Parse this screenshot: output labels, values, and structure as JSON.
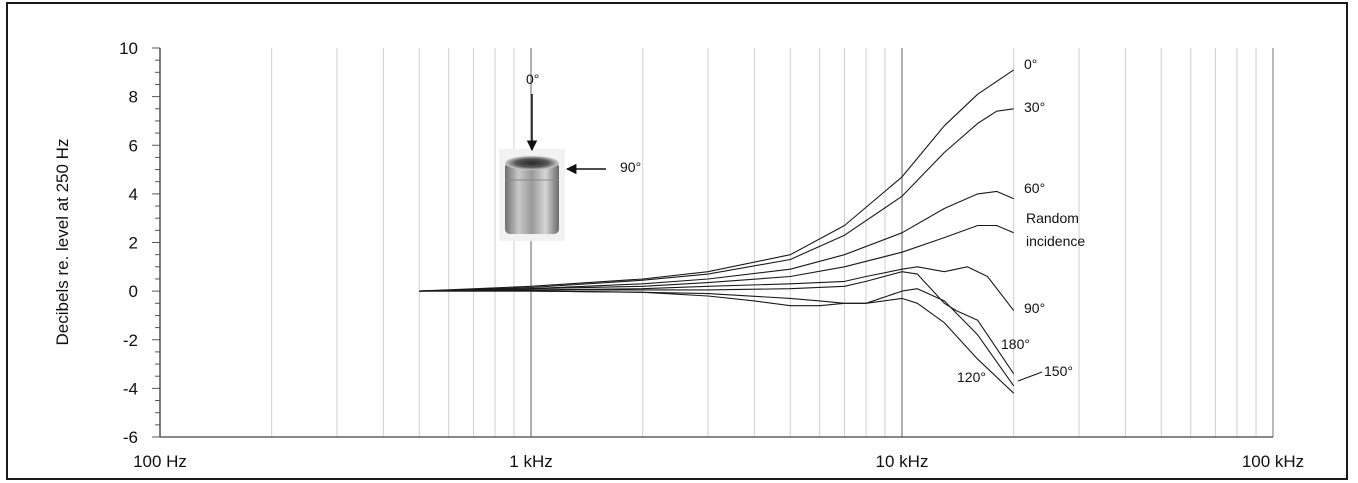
{
  "chart_data": {
    "type": "line",
    "title": "",
    "xlabel": "",
    "ylabel": "Decibels re. level at 250 Hz",
    "xscale": "log",
    "xlim": [
      100,
      100000
    ],
    "ylim": [
      -6,
      10
    ],
    "grid": true,
    "x_tick_labels": [
      "100 Hz",
      "1 kHz",
      "10 kHz",
      "100 kHz"
    ],
    "y_ticks": [
      -6,
      -4,
      -2,
      0,
      2,
      4,
      6,
      8,
      10
    ],
    "series": [
      {
        "name": "0°",
        "x": [
          500,
          1000,
          2000,
          3000,
          5000,
          7000,
          10000,
          13000,
          16000,
          20000
        ],
        "y": [
          0,
          0.2,
          0.5,
          0.8,
          1.5,
          2.7,
          4.7,
          6.8,
          8.1,
          9.1
        ]
      },
      {
        "name": "30°",
        "x": [
          500,
          1000,
          2000,
          3000,
          5000,
          7000,
          10000,
          13000,
          16000,
          18000,
          20000
        ],
        "y": [
          0,
          0.15,
          0.45,
          0.7,
          1.3,
          2.3,
          3.9,
          5.7,
          6.9,
          7.4,
          7.5
        ]
      },
      {
        "name": "60°",
        "x": [
          500,
          1000,
          2000,
          3000,
          5000,
          7000,
          10000,
          13000,
          16000,
          18000,
          20000
        ],
        "y": [
          0,
          0.1,
          0.3,
          0.5,
          0.9,
          1.5,
          2.4,
          3.4,
          4.0,
          4.1,
          3.8
        ]
      },
      {
        "name": "Random incidence",
        "x": [
          500,
          1000,
          2000,
          3000,
          5000,
          7000,
          10000,
          13000,
          16000,
          18000,
          20000
        ],
        "y": [
          0,
          0.1,
          0.2,
          0.35,
          0.6,
          1.0,
          1.6,
          2.2,
          2.7,
          2.7,
          2.4
        ]
      },
      {
        "name": "90°",
        "x": [
          500,
          1000,
          2000,
          3000,
          5000,
          7000,
          8000,
          10000,
          11000,
          13000,
          15000,
          17000,
          20000
        ],
        "y": [
          0,
          0.05,
          0.1,
          0.2,
          0.3,
          0.4,
          0.6,
          0.9,
          1.0,
          0.8,
          1.0,
          0.6,
          -0.8
        ]
      },
      {
        "name": "180°",
        "x": [
          500,
          1000,
          2000,
          3000,
          5000,
          7000,
          8000,
          10000,
          11000,
          13000,
          14000,
          16000,
          20000
        ],
        "y": [
          0,
          0.05,
          0.05,
          0.05,
          0.1,
          0.2,
          0.4,
          0.8,
          0.7,
          -0.5,
          -0.8,
          -1.2,
          -3.4
        ]
      },
      {
        "name": "150°",
        "x": [
          500,
          1000,
          2000,
          3000,
          5000,
          6000,
          7000,
          8000,
          10000,
          11000,
          13000,
          16000,
          20000
        ],
        "y": [
          0,
          0,
          -0.05,
          -0.1,
          -0.3,
          -0.4,
          -0.5,
          -0.5,
          0.0,
          0.1,
          -0.4,
          -1.8,
          -3.9
        ]
      },
      {
        "name": "120°",
        "x": [
          500,
          1000,
          2000,
          3000,
          4000,
          5000,
          6000,
          7000,
          8000,
          10000,
          11000,
          13000,
          16000,
          20000
        ],
        "y": [
          0,
          0,
          -0.05,
          -0.2,
          -0.4,
          -0.6,
          -0.6,
          -0.5,
          -0.5,
          -0.3,
          -0.5,
          -1.3,
          -2.8,
          -4.2
        ]
      }
    ],
    "curve_labels": [
      {
        "text": "0°",
        "series": "0°"
      },
      {
        "text": "30°",
        "series": "30°"
      },
      {
        "text": "60°",
        "series": "60°"
      },
      {
        "text": "Random",
        "series": "Random incidence"
      },
      {
        "text": "incidence",
        "series": "Random incidence"
      },
      {
        "text": "90°",
        "series": "90°"
      },
      {
        "text": "180°",
        "series": "180°"
      },
      {
        "text": "150°",
        "series": "150°"
      },
      {
        "text": "120°",
        "series": "120°"
      }
    ],
    "inset": {
      "arrow_top_label": "0°",
      "arrow_side_label": "90°",
      "image": "microphone-photo"
    }
  }
}
